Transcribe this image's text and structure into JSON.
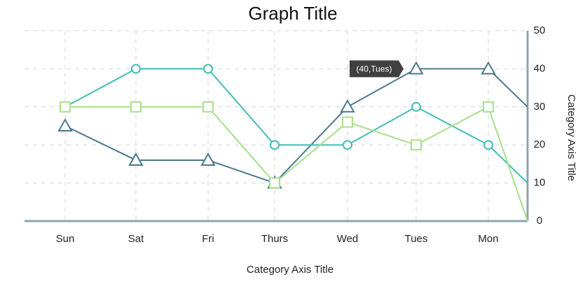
{
  "chart_data": {
    "type": "line",
    "title": "Graph Title",
    "xlabel": "Category Axis Title",
    "ylabel": "Category Axis Title",
    "categories": [
      "Mon",
      "Tues",
      "Wed",
      "Thurs",
      "Fri",
      "Sat",
      "Sun"
    ],
    "x_axis_reversed": true,
    "y_axis_side": "right",
    "ylim": [
      0,
      50
    ],
    "yticks": [
      0,
      10,
      20,
      30,
      40,
      50
    ],
    "grid": true,
    "series": [
      {
        "values": [
          40,
          40,
          30,
          10,
          16,
          16,
          25
        ],
        "color": "#4a7a8c",
        "marker": "triangle",
        "line_start": 30
      },
      {
        "values": [
          20,
          30,
          20,
          20,
          40,
          40,
          30
        ],
        "color": "#40bdb6",
        "marker": "circle",
        "line_start": 10
      },
      {
        "values": [
          30,
          20,
          26,
          10,
          30,
          30,
          30
        ],
        "color": "#a6e08a",
        "marker": "square",
        "line_start": 0
      }
    ],
    "annotation": {
      "text": "(40,Tues)",
      "series_index": 0,
      "category": "Tues"
    },
    "axis_color": "#8fa4ad",
    "grid_color": "#d4d4d4",
    "tooltip_color": "#404040"
  }
}
